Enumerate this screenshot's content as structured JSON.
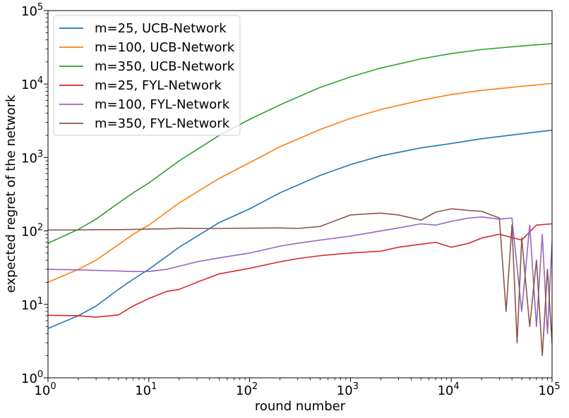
{
  "chart_data": {
    "type": "line",
    "title": "",
    "xlabel": "round number",
    "ylabel": "expected regret of the network",
    "xscale": "log",
    "yscale": "log",
    "xlim": [
      1,
      100000
    ],
    "ylim": [
      1,
      100000
    ],
    "grid": false,
    "legend_position": "top-left",
    "x_ticks": [
      {
        "base": "10",
        "exp": "0",
        "value": 1
      },
      {
        "base": "10",
        "exp": "1",
        "value": 10
      },
      {
        "base": "10",
        "exp": "2",
        "value": 100
      },
      {
        "base": "10",
        "exp": "3",
        "value": 1000
      },
      {
        "base": "10",
        "exp": "4",
        "value": 10000
      },
      {
        "base": "10",
        "exp": "5",
        "value": 100000
      }
    ],
    "y_ticks": [
      {
        "base": "10",
        "exp": "0",
        "value": 1
      },
      {
        "base": "10",
        "exp": "1",
        "value": 10
      },
      {
        "base": "10",
        "exp": "2",
        "value": 100
      },
      {
        "base": "10",
        "exp": "3",
        "value": 1000
      },
      {
        "base": "10",
        "exp": "4",
        "value": 10000
      },
      {
        "base": "10",
        "exp": "5",
        "value": 100000
      }
    ],
    "series": [
      {
        "name": "m=25, UCB-Network",
        "color": "#1f77b4",
        "x": [
          1,
          2,
          3,
          5,
          7,
          10,
          20,
          50,
          100,
          200,
          500,
          1000,
          2000,
          5000,
          10000,
          20000,
          50000,
          100000
        ],
        "y": [
          4.7,
          7,
          9.5,
          16,
          22,
          30,
          60,
          130,
          200,
          330,
          570,
          800,
          1050,
          1350,
          1550,
          1800,
          2100,
          2350
        ]
      },
      {
        "name": "m=100, UCB-Network",
        "color": "#ff7f0e",
        "x": [
          1,
          2,
          3,
          5,
          7,
          10,
          20,
          50,
          100,
          200,
          500,
          1000,
          2000,
          5000,
          10000,
          20000,
          50000,
          100000
        ],
        "y": [
          20,
          30,
          40,
          65,
          90,
          120,
          240,
          520,
          850,
          1400,
          2400,
          3400,
          4500,
          6000,
          7200,
          8200,
          9300,
          10200
        ]
      },
      {
        "name": "m=350, UCB-Network",
        "color": "#2ca02c",
        "x": [
          1,
          2,
          3,
          5,
          7,
          10,
          20,
          50,
          100,
          200,
          500,
          1000,
          2000,
          5000,
          10000,
          20000,
          50000,
          100000
        ],
        "y": [
          68,
          105,
          145,
          240,
          330,
          450,
          900,
          2000,
          3300,
          5200,
          9000,
          12500,
          16500,
          22000,
          26000,
          29500,
          33000,
          35500
        ]
      },
      {
        "name": "m=25, FYL-Network",
        "color": "#d62728",
        "x": [
          1,
          2,
          3,
          5,
          7,
          10,
          15,
          20,
          30,
          50,
          100,
          200,
          300,
          500,
          1000,
          2000,
          3000,
          5000,
          7000,
          10000,
          15000,
          20000,
          30000,
          50000,
          70000,
          100000
        ],
        "y": [
          7.1,
          7.0,
          6.7,
          7.2,
          9.5,
          12,
          15,
          16,
          20,
          26,
          31,
          38,
          42,
          46,
          50,
          53,
          60,
          66,
          70,
          60,
          68,
          80,
          90,
          75,
          120,
          125
        ]
      },
      {
        "name": "m=100, FYL-Network",
        "color": "#9467bd",
        "x": [
          1,
          2,
          3,
          5,
          7,
          10,
          15,
          20,
          30,
          50,
          100,
          200,
          300,
          500,
          1000,
          2000,
          3000,
          5000,
          7000,
          10000,
          15000,
          20000,
          30000,
          40000,
          50000,
          60000,
          70000,
          80000,
          90000,
          100000
        ],
        "y": [
          30,
          29.5,
          29,
          28.5,
          28,
          28,
          30,
          33,
          38,
          43,
          50,
          62,
          68,
          75,
          85,
          100,
          110,
          125,
          120,
          135,
          150,
          155,
          145,
          150,
          8,
          120,
          5,
          90,
          4,
          70
        ]
      },
      {
        "name": "m=350, FYL-Network",
        "color": "#8c564b",
        "x": [
          1,
          2,
          3,
          5,
          7,
          10,
          15,
          20,
          30,
          50,
          100,
          200,
          300,
          500,
          1000,
          2000,
          3000,
          5000,
          7000,
          10000,
          15000,
          20000,
          30000,
          35000,
          40000,
          45000,
          50000,
          60000,
          70000,
          80000,
          90000,
          100000
        ],
        "y": [
          103,
          103,
          104,
          104,
          105,
          106,
          107,
          109,
          108,
          108,
          109,
          110,
          108,
          115,
          165,
          175,
          165,
          140,
          180,
          200,
          190,
          185,
          150,
          8,
          120,
          3,
          80,
          5,
          40,
          2,
          30,
          3
        ]
      }
    ]
  }
}
